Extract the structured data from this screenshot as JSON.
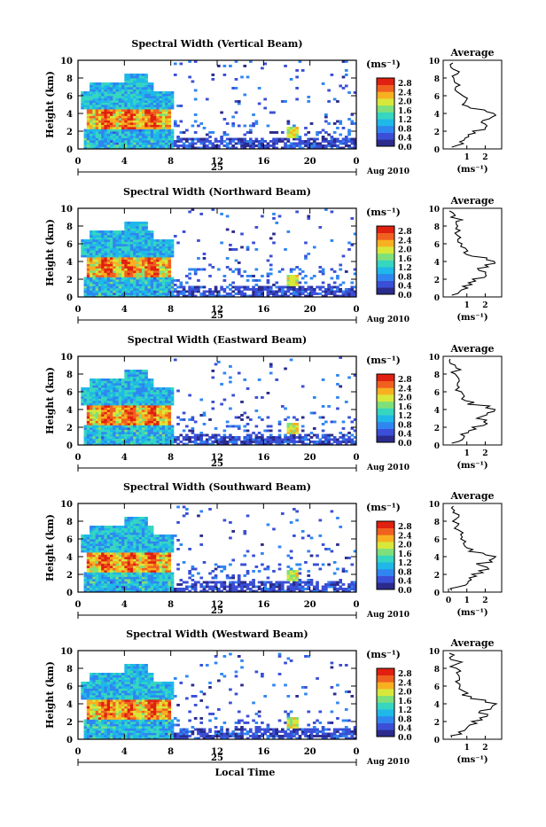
{
  "chart_data": [
    {
      "type": "heatmap",
      "title": "Spectral Width (Vertical Beam)",
      "ylabel": "Height (km)",
      "ylim": [
        0,
        10
      ],
      "yticks": [
        "0",
        "2",
        "4",
        "6",
        "8",
        "10"
      ],
      "xticks": [
        "0",
        "4",
        "8",
        "12",
        "16",
        "20",
        "0"
      ],
      "xlim": [
        0,
        24
      ],
      "day_label": "25",
      "date_label": "Aug 2010",
      "colorbar_unit": "(ms⁻¹)",
      "colorbar_ticks": [
        "0.0",
        "0.4",
        "0.8",
        "1.2",
        "1.6",
        "2.0",
        "2.4",
        "2.8"
      ],
      "profile_title": "Average",
      "profile_xticks": [
        "1",
        "2"
      ],
      "profile_xlabel": "(ms⁻¹)"
    },
    {
      "type": "heatmap",
      "title": "Spectral Width (Northward Beam)",
      "ylabel": "Height (km)",
      "ylim": [
        0,
        10
      ],
      "yticks": [
        "0",
        "2",
        "4",
        "6",
        "8",
        "10"
      ],
      "xticks": [
        "0",
        "4",
        "8",
        "12",
        "16",
        "20",
        "0"
      ],
      "xlim": [
        0,
        24
      ],
      "day_label": "25",
      "date_label": "Aug 2010",
      "colorbar_unit": "(ms⁻¹)",
      "colorbar_ticks": [
        "0.0",
        "0.4",
        "0.8",
        "1.2",
        "1.6",
        "2.0",
        "2.4",
        "2.8"
      ],
      "profile_title": "Average",
      "profile_xticks": [
        "1",
        "2"
      ],
      "profile_xlabel": "(ms⁻¹)"
    },
    {
      "type": "heatmap",
      "title": "Spectral Width (Eastward Beam)",
      "ylabel": "Height (km)",
      "ylim": [
        0,
        10
      ],
      "yticks": [
        "0",
        "2",
        "4",
        "6",
        "8",
        "10"
      ],
      "xticks": [
        "0",
        "4",
        "8",
        "12",
        "16",
        "20",
        "0"
      ],
      "xlim": [
        0,
        24
      ],
      "day_label": "25",
      "date_label": "Aug 2010",
      "colorbar_unit": "(ms⁻¹)",
      "colorbar_ticks": [
        "0.0",
        "0.4",
        "0.8",
        "1.2",
        "1.6",
        "2.0",
        "2.4",
        "2.8"
      ],
      "profile_title": "Average",
      "profile_xticks": [
        "1",
        "2"
      ],
      "profile_xlabel": "(ms⁻¹)"
    },
    {
      "type": "heatmap",
      "title": "Spectral Width (Southward Beam)",
      "ylabel": "Height (km)",
      "ylim": [
        0,
        10
      ],
      "yticks": [
        "0",
        "2",
        "4",
        "6",
        "8",
        "10"
      ],
      "xticks": [
        "0",
        "4",
        "8",
        "12",
        "16",
        "20",
        "0"
      ],
      "xlim": [
        0,
        24
      ],
      "day_label": "25",
      "date_label": "Aug 2010",
      "colorbar_unit": "(ms⁻¹)",
      "colorbar_ticks": [
        "0.0",
        "0.4",
        "0.8",
        "1.2",
        "1.6",
        "2.0",
        "2.4",
        "2.8"
      ],
      "profile_title": "Average",
      "profile_xticks": [
        "0",
        "1",
        "2"
      ],
      "profile_xlabel": "(ms⁻¹)"
    },
    {
      "type": "heatmap",
      "title": "Spectral Width (Westward Beam)",
      "ylabel": "Height (km)",
      "ylim": [
        0,
        10
      ],
      "yticks": [
        "0",
        "2",
        "4",
        "6",
        "8",
        "10"
      ],
      "xticks": [
        "0",
        "4",
        "8",
        "12",
        "16",
        "20",
        "0"
      ],
      "xlim": [
        0,
        24
      ],
      "day_label": "25",
      "date_label": "Aug 2010",
      "colorbar_unit": "(ms⁻¹)",
      "colorbar_ticks": [
        "0.0",
        "0.4",
        "0.8",
        "1.2",
        "1.6",
        "2.0",
        "2.4",
        "2.8"
      ],
      "profile_title": "Average",
      "profile_xticks": [
        "1",
        "2"
      ],
      "profile_xlabel": "(ms⁻¹)",
      "xlabel": "Local Time"
    }
  ],
  "colormap": [
    "#2b2b8c",
    "#3a4fd6",
    "#2f86f0",
    "#1fb8e8",
    "#36d6c0",
    "#7ee07a",
    "#d8e83a",
    "#f8b020",
    "#f06020",
    "#e02010"
  ],
  "profile": {
    "heights": [
      0.2,
      0.6,
      1.0,
      1.4,
      1.8,
      2.2,
      2.6,
      3.0,
      3.4,
      3.8,
      4.2,
      4.6,
      5.0,
      5.5,
      6.0,
      6.5,
      7.0,
      7.5,
      8.0,
      8.5,
      9.0,
      9.5
    ],
    "values": [
      0.35,
      0.7,
      0.9,
      1.1,
      1.4,
      1.9,
      2.1,
      1.7,
      2.2,
      2.5,
      2.0,
      1.2,
      0.9,
      0.8,
      0.6,
      0.55,
      0.5,
      0.5,
      0.35,
      0.5,
      0.25,
      0.15
    ]
  }
}
